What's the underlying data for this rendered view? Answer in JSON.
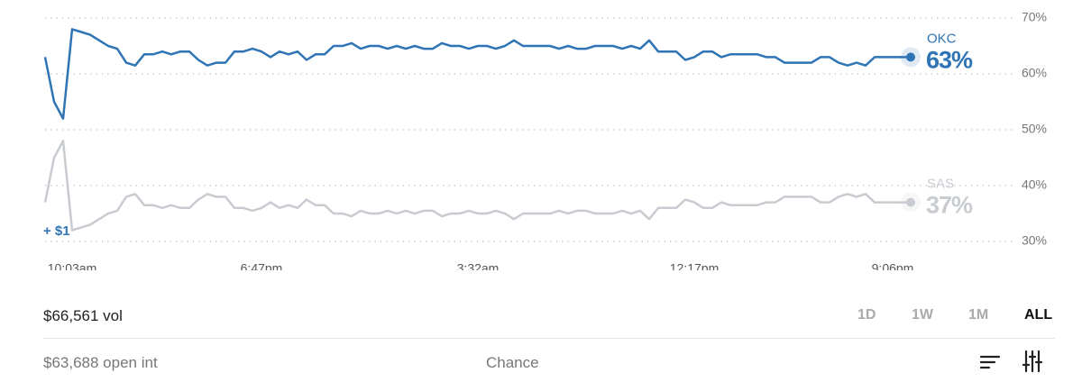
{
  "chart_data": {
    "type": "line",
    "annotation": "+ $1",
    "categories": [
      null,
      null,
      null,
      "10:03am",
      null,
      null,
      null,
      null,
      null,
      null,
      null,
      null,
      null,
      null,
      null,
      null,
      null,
      null,
      null,
      null,
      null,
      null,
      null,
      null,
      "6:47pm",
      null,
      null,
      null,
      null,
      null,
      null,
      null,
      null,
      null,
      null,
      null,
      null,
      null,
      null,
      null,
      null,
      null,
      null,
      null,
      null,
      null,
      null,
      null,
      "3:32am",
      null,
      null,
      null,
      null,
      null,
      null,
      null,
      null,
      null,
      null,
      null,
      null,
      null,
      null,
      null,
      null,
      null,
      null,
      null,
      null,
      null,
      null,
      null,
      "12:17pm",
      null,
      null,
      null,
      null,
      null,
      null,
      null,
      null,
      null,
      null,
      null,
      null,
      null,
      null,
      null,
      null,
      null,
      null,
      null,
      null,
      null,
      "9:06pm",
      null,
      null
    ],
    "series": [
      {
        "name": "OKC",
        "end_label": "63%",
        "color": "#2f74b5",
        "values": [
          63,
          55,
          52,
          68,
          67.5,
          67,
          66,
          65,
          64.5,
          62,
          61.5,
          63.5,
          63.5,
          64,
          63.5,
          64,
          64,
          62.5,
          61.5,
          62,
          62,
          64,
          64,
          64.5,
          64,
          63,
          64,
          63.5,
          64,
          62.5,
          63.5,
          63.5,
          65,
          65,
          65.5,
          64.5,
          65,
          65,
          64.5,
          65,
          64.5,
          65,
          64.5,
          64.5,
          65.5,
          65,
          65,
          64.5,
          65,
          65,
          64.5,
          65,
          66,
          65,
          65,
          65,
          65,
          64.5,
          65,
          64.5,
          64.5,
          65,
          65,
          65,
          64.5,
          65,
          64.5,
          66,
          64,
          64,
          64,
          62.5,
          63,
          64,
          64,
          63,
          63.5,
          63.5,
          63.5,
          63.5,
          63,
          63,
          62,
          62,
          62,
          62,
          63,
          63,
          62,
          61.5,
          62,
          61.5,
          63,
          63,
          63,
          63,
          63
        ]
      },
      {
        "name": "SAS",
        "end_label": "37%",
        "color": "#c8ccd1",
        "values": [
          37,
          45,
          48,
          32,
          32.5,
          33,
          34,
          35,
          35.5,
          38,
          38.5,
          36.5,
          36.5,
          36,
          36.5,
          36,
          36,
          37.5,
          38.5,
          38,
          38,
          36,
          36,
          35.5,
          36,
          37,
          36,
          36.5,
          36,
          37.5,
          36.5,
          36.5,
          35,
          35,
          34.5,
          35.5,
          35,
          35,
          35.5,
          35,
          35.5,
          35,
          35.5,
          35.5,
          34.5,
          35,
          35,
          35.5,
          35,
          35,
          35.5,
          35,
          34,
          35,
          35,
          35,
          35,
          35.5,
          35,
          35.5,
          35.5,
          35,
          35,
          35,
          35.5,
          35,
          35.5,
          34,
          36,
          36,
          36,
          37.5,
          37,
          36,
          36,
          37,
          36.5,
          36.5,
          36.5,
          36.5,
          37,
          37,
          38,
          38,
          38,
          38,
          37,
          37,
          38,
          38.5,
          38,
          38.5,
          37,
          37,
          37,
          37,
          37
        ]
      }
    ],
    "ylim": [
      30,
      70
    ],
    "yticks": [
      {
        "value": 30,
        "label": "30%"
      },
      {
        "value": 40,
        "label": "40%"
      },
      {
        "value": 50,
        "label": "50%"
      },
      {
        "value": 60,
        "label": "60%"
      },
      {
        "value": 70,
        "label": "70%"
      }
    ],
    "grid": true
  },
  "footer": {
    "volume": "$66,561 vol",
    "ranges": [
      "1D",
      "1W",
      "1M",
      "ALL"
    ],
    "open_interest": "$63,688 open int",
    "mode": "Chance"
  }
}
